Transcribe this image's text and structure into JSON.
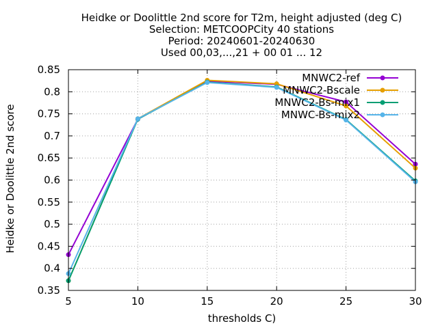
{
  "chart_data": {
    "type": "line",
    "title_lines": [
      "Heidke or Doolittle 2nd score  for T2m, height adjusted (deg C)",
      "Selection: METCOOPCity     40 stations",
      "Period: 20240601-20240630",
      "Used 00,03,...,21 + 00 01 ... 12"
    ],
    "xlabel": "thresholds C)",
    "ylabel": "Heidke or Doolittle 2nd score",
    "x": [
      5,
      10,
      15,
      20,
      25,
      30
    ],
    "xlim": [
      5,
      30
    ],
    "ylim": [
      0.35,
      0.85
    ],
    "xticks": [
      "5",
      "10",
      "15",
      "20",
      "25",
      "30"
    ],
    "yticks": [
      "0.35",
      "0.4",
      "0.45",
      "0.5",
      "0.55",
      "0.6",
      "0.65",
      "0.7",
      "0.75",
      "0.8",
      "0.85"
    ],
    "grid": true,
    "legend_position": "top-right",
    "series": [
      {
        "name": "MNWC2-ref",
        "color": "#9400d3",
        "values": [
          0.431,
          0.738,
          0.824,
          0.817,
          0.777,
          0.636
        ]
      },
      {
        "name": "MNWC2-Bscale",
        "color": "#e69f00",
        "values": [
          0.372,
          0.739,
          0.826,
          0.818,
          0.768,
          0.627
        ]
      },
      {
        "name": "MNWC2-Bs-mix1",
        "color": "#009e73",
        "values": [
          0.372,
          0.738,
          0.822,
          0.811,
          0.737,
          0.598
        ]
      },
      {
        "name": "MNWC-Bs-mix2",
        "color": "#56b4e9",
        "values": [
          0.388,
          0.739,
          0.821,
          0.81,
          0.736,
          0.596
        ]
      }
    ]
  }
}
